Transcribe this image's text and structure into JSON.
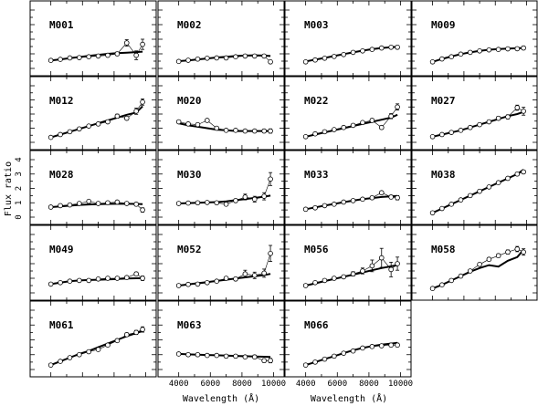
{
  "chart_data": {
    "type": "line",
    "ylabel": "Flux ratio",
    "xlabel": "Wavelength (Å)",
    "xlim": [
      3500,
      10200
    ],
    "ylim": [
      0,
      4
    ],
    "x_ticks": [
      4000,
      6000,
      8000,
      10000
    ],
    "x_tick_labels": [
      "4000",
      "6000",
      "8000",
      "10000"
    ],
    "y_ticks": [
      0,
      1,
      2,
      3,
      4
    ],
    "y_tick_labels": [
      "0",
      "1",
      "2",
      "3",
      "4"
    ],
    "y_tick_labels_shown_on": "M028",
    "x_tick_labels_shown_on": [
      "M063",
      "M066"
    ],
    "panels": [
      {
        "name": "M001",
        "model": [
          0.55,
          0.62,
          0.7,
          0.78,
          0.86,
          0.93,
          1.0,
          1.05,
          1.08,
          1.12,
          1.15
        ],
        "obs": [
          0.55,
          0.62,
          0.72,
          0.74,
          0.8,
          0.85,
          0.9,
          1.0,
          1.75,
          0.9,
          1.65
        ],
        "err": [
          0.08,
          0.08,
          0.08,
          0.08,
          0.08,
          0.08,
          0.1,
          0.12,
          0.22,
          0.3,
          0.35
        ]
      },
      {
        "name": "M002",
        "model": [
          0.5,
          0.55,
          0.62,
          0.68,
          0.75,
          0.8,
          0.85,
          0.88,
          0.9,
          0.88,
          0.85
        ],
        "obs": [
          0.48,
          0.56,
          0.64,
          0.7,
          0.72,
          0.72,
          0.8,
          0.85,
          0.85,
          0.85,
          0.45
        ],
        "err": [
          0.06,
          0.06,
          0.06,
          0.06,
          0.06,
          0.06,
          0.08,
          0.08,
          0.08,
          0.1,
          0.12
        ]
      },
      {
        "name": "M003",
        "model": [
          0.48,
          0.6,
          0.72,
          0.85,
          0.98,
          1.1,
          1.22,
          1.32,
          1.4,
          1.45,
          1.48
        ],
        "obs": [
          0.45,
          0.58,
          0.7,
          0.82,
          0.95,
          1.1,
          1.2,
          1.3,
          1.4,
          1.45,
          1.45
        ],
        "err": [
          0.06,
          0.06,
          0.06,
          0.06,
          0.06,
          0.06,
          0.07,
          0.07,
          0.08,
          0.1,
          0.12
        ]
      },
      {
        "name": "M009",
        "model": [
          0.45,
          0.65,
          0.82,
          0.98,
          1.1,
          1.2,
          1.28,
          1.33,
          1.36,
          1.38,
          1.4
        ],
        "obs": [
          0.45,
          0.65,
          0.8,
          0.98,
          1.1,
          1.2,
          1.27,
          1.3,
          1.34,
          1.35,
          1.4
        ],
        "err": [
          0.06,
          0.06,
          0.06,
          0.06,
          0.06,
          0.06,
          0.07,
          0.07,
          0.08,
          0.1,
          0.12
        ]
      },
      {
        "name": "M012",
        "model": [
          0.35,
          0.55,
          0.75,
          0.95,
          1.15,
          1.35,
          1.55,
          1.75,
          1.95,
          2.1,
          2.55
        ],
        "obs": [
          0.35,
          0.55,
          0.75,
          0.95,
          1.15,
          1.3,
          1.45,
          1.85,
          1.7,
          2.2,
          2.85
        ],
        "err": [
          0.06,
          0.06,
          0.06,
          0.06,
          0.06,
          0.08,
          0.1,
          0.14,
          0.12,
          0.22,
          0.22
        ]
      },
      {
        "name": "M020",
        "model": [
          1.35,
          1.2,
          1.1,
          1.0,
          0.9,
          0.85,
          0.8,
          0.8,
          0.8,
          0.8,
          0.8
        ],
        "obs": [
          1.45,
          1.3,
          1.25,
          1.55,
          1.0,
          0.85,
          0.85,
          0.8,
          0.8,
          0.8,
          0.8
        ],
        "err": [
          0.08,
          0.08,
          0.08,
          0.1,
          0.08,
          0.08,
          0.08,
          0.08,
          0.1,
          0.12,
          0.15
        ]
      },
      {
        "name": "M022",
        "model": [
          0.4,
          0.55,
          0.7,
          0.85,
          1.0,
          1.15,
          1.3,
          1.45,
          1.6,
          1.75,
          1.95
        ],
        "obs": [
          0.4,
          0.6,
          0.75,
          0.9,
          1.05,
          1.2,
          1.4,
          1.55,
          1.05,
          1.85,
          2.5
        ],
        "err": [
          0.06,
          0.06,
          0.06,
          0.06,
          0.06,
          0.08,
          0.1,
          0.12,
          0.12,
          0.18,
          0.22
        ]
      },
      {
        "name": "M027",
        "model": [
          0.4,
          0.55,
          0.7,
          0.85,
          1.05,
          1.25,
          1.45,
          1.65,
          1.85,
          2.0,
          2.15
        ],
        "obs": [
          0.4,
          0.55,
          0.7,
          0.85,
          1.05,
          1.25,
          1.45,
          1.7,
          1.8,
          2.45,
          2.2
        ],
        "err": [
          0.06,
          0.06,
          0.06,
          0.06,
          0.06,
          0.08,
          0.1,
          0.12,
          0.14,
          0.18,
          0.28
        ]
      },
      {
        "name": "M028",
        "model": [
          0.7,
          0.75,
          0.8,
          0.85,
          0.88,
          0.9,
          0.92,
          0.93,
          0.93,
          0.92,
          0.9
        ],
        "obs": [
          0.7,
          0.8,
          0.85,
          0.95,
          1.1,
          0.95,
          1.0,
          1.05,
          0.95,
          0.9,
          0.5
        ],
        "err": [
          0.06,
          0.06,
          0.06,
          0.06,
          0.08,
          0.08,
          0.08,
          0.1,
          0.1,
          0.12,
          0.15
        ]
      },
      {
        "name": "M030",
        "model": [
          0.95,
          0.98,
          1.0,
          1.02,
          1.05,
          1.1,
          1.18,
          1.26,
          1.34,
          1.42,
          1.5
        ],
        "obs": [
          0.95,
          0.98,
          1.0,
          1.02,
          1.0,
          0.9,
          1.15,
          1.4,
          1.25,
          1.45,
          2.65
        ],
        "err": [
          0.06,
          0.06,
          0.06,
          0.06,
          0.08,
          0.1,
          0.12,
          0.2,
          0.2,
          0.25,
          0.45
        ]
      },
      {
        "name": "M033",
        "model": [
          0.55,
          0.68,
          0.8,
          0.92,
          1.04,
          1.15,
          1.25,
          1.33,
          1.4,
          1.45,
          1.48
        ],
        "obs": [
          0.55,
          0.65,
          0.8,
          0.9,
          1.05,
          1.15,
          1.25,
          1.35,
          1.7,
          1.4,
          1.35
        ],
        "err": [
          0.06,
          0.06,
          0.06,
          0.06,
          0.06,
          0.08,
          0.08,
          0.1,
          0.1,
          0.12,
          0.15
        ]
      },
      {
        "name": "M038",
        "model": [
          0.3,
          0.6,
          0.9,
          1.2,
          1.5,
          1.8,
          2.1,
          2.4,
          2.7,
          3.0,
          3.3
        ],
        "obs": [
          0.3,
          0.6,
          0.9,
          1.2,
          1.5,
          1.8,
          2.1,
          2.4,
          2.7,
          3.0,
          3.15
        ],
        "err": [
          0.06,
          0.06,
          0.06,
          0.06,
          0.06,
          0.08,
          0.08,
          0.08,
          0.1,
          0.1,
          0.12
        ]
      },
      {
        "name": "M049",
        "model": [
          0.6,
          0.7,
          0.8,
          0.85,
          0.88,
          0.9,
          0.92,
          0.95,
          0.98,
          1.0,
          1.0
        ],
        "obs": [
          0.6,
          0.7,
          0.8,
          0.85,
          0.85,
          0.95,
          1.0,
          1.0,
          1.05,
          1.3,
          1.0
        ],
        "err": [
          0.06,
          0.06,
          0.06,
          0.06,
          0.06,
          0.08,
          0.08,
          0.1,
          0.1,
          0.12,
          0.15
        ]
      },
      {
        "name": "M052",
        "model": [
          0.5,
          0.58,
          0.66,
          0.74,
          0.82,
          0.9,
          0.98,
          1.06,
          1.14,
          1.22,
          1.3
        ],
        "obs": [
          0.5,
          0.58,
          0.6,
          0.7,
          0.8,
          1.0,
          0.95,
          1.3,
          1.2,
          1.35,
          2.7
        ],
        "err": [
          0.06,
          0.06,
          0.06,
          0.06,
          0.08,
          0.1,
          0.12,
          0.25,
          0.22,
          0.28,
          0.55
        ]
      },
      {
        "name": "M056",
        "model": [
          0.5,
          0.65,
          0.8,
          0.95,
          1.1,
          1.25,
          1.4,
          1.55,
          1.7,
          1.82,
          1.9
        ],
        "obs": [
          0.5,
          0.7,
          0.85,
          1.0,
          1.1,
          1.3,
          1.5,
          1.85,
          2.4,
          1.6,
          2.0
        ],
        "err": [
          0.08,
          0.08,
          0.08,
          0.1,
          0.1,
          0.15,
          0.2,
          0.4,
          0.65,
          0.5,
          0.45
        ]
      },
      {
        "name": "M058",
        "model": [
          0.3,
          0.55,
          0.85,
          1.15,
          1.45,
          1.7,
          1.9,
          1.8,
          2.2,
          2.45,
          2.95
        ],
        "obs": [
          0.3,
          0.55,
          0.85,
          1.15,
          1.5,
          1.95,
          2.3,
          2.55,
          2.8,
          3.0,
          2.8
        ],
        "err": [
          0.06,
          0.06,
          0.06,
          0.06,
          0.08,
          0.1,
          0.12,
          0.12,
          0.14,
          0.18,
          0.22
        ]
      },
      {
        "name": "M061",
        "model": [
          0.3,
          0.55,
          0.8,
          1.05,
          1.25,
          1.5,
          1.75,
          2.0,
          2.25,
          2.45,
          2.6
        ],
        "obs": [
          0.3,
          0.55,
          0.8,
          1.0,
          1.2,
          1.35,
          1.65,
          1.95,
          2.35,
          2.5,
          2.7
        ],
        "err": [
          0.06,
          0.06,
          0.06,
          0.06,
          0.06,
          0.08,
          0.08,
          0.1,
          0.12,
          0.14,
          0.18
        ]
      },
      {
        "name": "M063",
        "model": [
          1.05,
          1.02,
          1.0,
          0.98,
          0.96,
          0.94,
          0.92,
          0.9,
          0.88,
          0.86,
          0.85
        ],
        "obs": [
          1.05,
          1.0,
          1.0,
          0.95,
          0.95,
          0.9,
          0.9,
          0.85,
          0.85,
          0.6,
          0.6
        ],
        "err": [
          0.08,
          0.08,
          0.08,
          0.08,
          0.08,
          0.1,
          0.1,
          0.1,
          0.12,
          0.12,
          0.15
        ]
      },
      {
        "name": "M066",
        "model": [
          0.3,
          0.5,
          0.7,
          0.9,
          1.1,
          1.3,
          1.45,
          1.58,
          1.68,
          1.75,
          1.8
        ],
        "obs": [
          0.3,
          0.5,
          0.7,
          0.9,
          1.1,
          1.25,
          1.45,
          1.55,
          1.6,
          1.65,
          1.65
        ],
        "err": [
          0.06,
          0.06,
          0.06,
          0.06,
          0.06,
          0.08,
          0.08,
          0.1,
          0.1,
          0.12,
          0.12
        ]
      }
    ]
  }
}
